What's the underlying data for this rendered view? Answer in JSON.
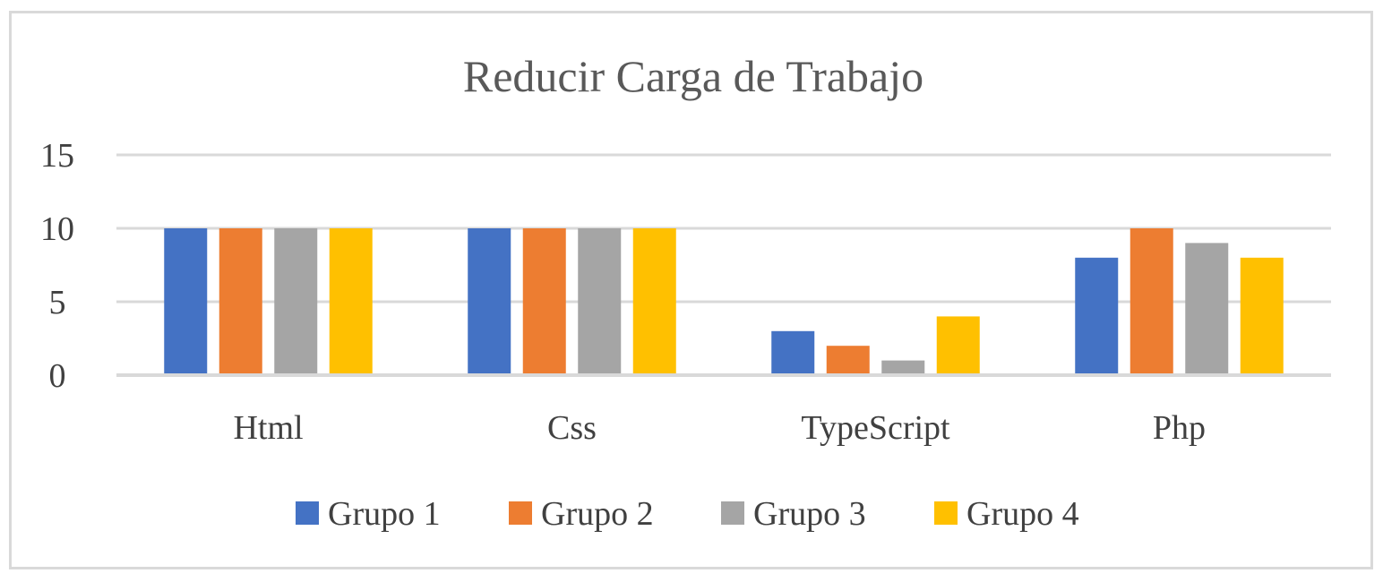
{
  "chart_data": {
    "type": "bar",
    "title": "Reducir Carga de Trabajo",
    "xlabel": "",
    "ylabel": "",
    "categories": [
      "Html",
      "Css",
      "TypeScript",
      "Php"
    ],
    "series": [
      {
        "name": "Grupo 1",
        "values": [
          10,
          10,
          3,
          8
        ],
        "color": "#4472c4"
      },
      {
        "name": "Grupo 2",
        "values": [
          10,
          10,
          2,
          10
        ],
        "color": "#ed7d31"
      },
      {
        "name": "Grupo 3",
        "values": [
          10,
          10,
          1,
          9
        ],
        "color": "#a5a5a5"
      },
      {
        "name": "Grupo 4",
        "values": [
          10,
          10,
          4,
          8
        ],
        "color": "#ffc000"
      }
    ],
    "ylim": [
      0,
      15
    ],
    "yticks": [
      0,
      5,
      10,
      15
    ],
    "grid": true,
    "legend_position": "bottom",
    "grid_color": "#d9d9d9"
  }
}
